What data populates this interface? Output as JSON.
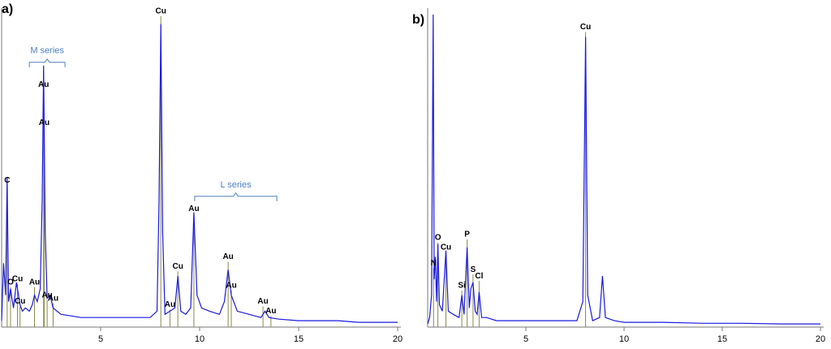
{
  "chart_data": [
    {
      "type": "line",
      "title": "a)",
      "color": "#1a1ae0",
      "marker_color": "#8a8a4a",
      "xlim": [
        0,
        20
      ],
      "xticks": [
        5,
        10,
        15,
        20
      ],
      "ylim": [
        0,
        100
      ],
      "x": [
        0,
        0.1,
        0.2,
        0.28,
        0.35,
        0.45,
        0.52,
        0.6,
        0.75,
        0.93,
        1.05,
        1.2,
        1.4,
        1.55,
        1.66,
        1.8,
        1.95,
        2.05,
        2.12,
        2.2,
        2.3,
        2.45,
        2.6,
        2.8,
        3.0,
        3.5,
        4,
        4.5,
        5,
        5.5,
        6,
        6.5,
        7,
        7.5,
        7.85,
        7.95,
        8.04,
        8.13,
        8.25,
        8.5,
        8.75,
        8.9,
        9.05,
        9.3,
        9.55,
        9.71,
        9.87,
        10.1,
        10.5,
        11,
        11.25,
        11.44,
        11.6,
        11.9,
        12.5,
        13.1,
        13.3,
        13.5,
        14,
        15,
        16,
        17,
        18,
        19,
        20
      ],
      "values": [
        2,
        20,
        10,
        47,
        8,
        12,
        9,
        6,
        14,
        7,
        5,
        6,
        5,
        7,
        10,
        8,
        12,
        40,
        82,
        30,
        9,
        10,
        6,
        5,
        4,
        3.5,
        3,
        3,
        3,
        3,
        3,
        3,
        3,
        3,
        5,
        40,
        95,
        30,
        4,
        5,
        6,
        16,
        5,
        4,
        6,
        36,
        10,
        6,
        5,
        4,
        8,
        18,
        10,
        5,
        4,
        3,
        5,
        3,
        2.5,
        2,
        2,
        2,
        1.5,
        1.5,
        1.5
      ],
      "markers": [
        {
          "label": "C",
          "x": 0.28,
          "y": 46
        },
        {
          "label": "O",
          "x": 0.45,
          "y": 14
        },
        {
          "label": "Cu",
          "x": 0.8,
          "y": 15
        },
        {
          "label": "Cu",
          "x": 0.93,
          "y": 8
        },
        {
          "label": "Au",
          "x": 1.66,
          "y": 14
        },
        {
          "label": "Au",
          "x": 2.12,
          "y": 76
        },
        {
          "label": "Au",
          "x": 2.15,
          "y": 64
        },
        {
          "label": "Au",
          "x": 2.3,
          "y": 10
        },
        {
          "label": "Au",
          "x": 2.6,
          "y": 9
        },
        {
          "label": "Cu",
          "x": 8.04,
          "y": 99
        },
        {
          "label": "Au",
          "x": 8.5,
          "y": 7
        },
        {
          "label": "Cu",
          "x": 8.9,
          "y": 19
        },
        {
          "label": "Au",
          "x": 9.71,
          "y": 37
        },
        {
          "label": "Au",
          "x": 11.44,
          "y": 22
        },
        {
          "label": "Au",
          "x": 11.6,
          "y": 13
        },
        {
          "label": "Au",
          "x": 13.2,
          "y": 8
        },
        {
          "label": "Au",
          "x": 13.6,
          "y": 5
        }
      ],
      "brackets": [
        {
          "label": "M series",
          "x": [
            1.4,
            3.2
          ],
          "y": 83
        },
        {
          "label": "L series",
          "x": [
            9.75,
            13.9
          ],
          "y": 41
        }
      ]
    },
    {
      "type": "line",
      "title": "b)",
      "color": "#1a1ae0",
      "marker_color": "#8a8a4a",
      "xlim": [
        0,
        20
      ],
      "xticks": [
        5,
        10,
        15,
        20
      ],
      "ylim": [
        0,
        100
      ],
      "x": [
        0,
        0.1,
        0.2,
        0.28,
        0.33,
        0.39,
        0.45,
        0.52,
        0.6,
        0.75,
        0.93,
        1.05,
        1.3,
        1.6,
        1.74,
        1.85,
        2.01,
        2.12,
        2.2,
        2.31,
        2.42,
        2.52,
        2.62,
        2.75,
        3,
        3.5,
        4,
        5,
        6,
        7,
        7.6,
        7.9,
        8.04,
        8.15,
        8.4,
        8.75,
        8.9,
        9.05,
        9.5,
        10,
        12,
        14,
        16,
        18,
        20
      ],
      "values": [
        1,
        3,
        10,
        98,
        15,
        22,
        8,
        26,
        7,
        5,
        24,
        5,
        4,
        3,
        10,
        4,
        25,
        6,
        12,
        14,
        5,
        4,
        11,
        3,
        3,
        2,
        2,
        2,
        2,
        2,
        2,
        8,
        91,
        10,
        2,
        3,
        16,
        3,
        2,
        1.5,
        1.5,
        1.2,
        1.2,
        1,
        1
      ],
      "markers": [
        {
          "label": "N",
          "x": 0.3,
          "y": 20
        },
        {
          "label": "O",
          "x": 0.52,
          "y": 28
        },
        {
          "label": "Cu",
          "x": 0.93,
          "y": 25
        },
        {
          "label": "Si",
          "x": 1.74,
          "y": 13
        },
        {
          "label": "P",
          "x": 2.01,
          "y": 29
        },
        {
          "label": "S",
          "x": 2.31,
          "y": 18
        },
        {
          "label": "Cl",
          "x": 2.62,
          "y": 16
        },
        {
          "label": "Cu",
          "x": 8.04,
          "y": 94
        }
      ],
      "brackets": []
    }
  ]
}
